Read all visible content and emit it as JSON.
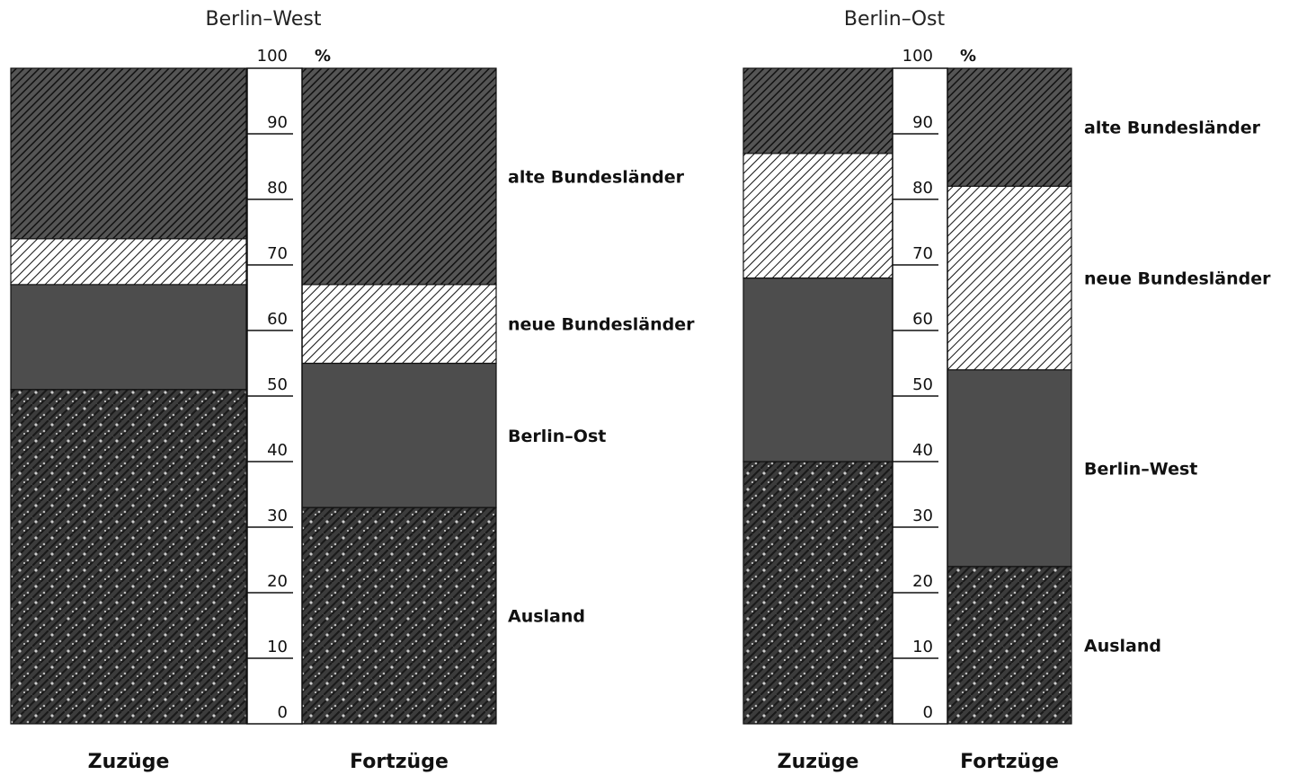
{
  "chart_data": [
    {
      "type": "bar",
      "stacked": true,
      "title": "Berlin–West",
      "unit": "%",
      "ylim": [
        0,
        100
      ],
      "yticks": [
        0,
        10,
        20,
        30,
        40,
        50,
        60,
        70,
        80,
        90,
        100
      ],
      "categories": [
        "Zuzüge",
        "Fortzüge"
      ],
      "series": [
        {
          "name": "Ausland",
          "values": [
            51,
            33
          ]
        },
        {
          "name": "Berlin–Ost",
          "values": [
            16,
            22
          ]
        },
        {
          "name": "neue Bundesländer",
          "values": [
            7,
            12
          ]
        },
        {
          "name": "alte Bundesländer",
          "values": [
            26,
            33
          ]
        }
      ],
      "colors": {
        "alte": "#3a3a3a",
        "neue": "#ffffff",
        "ost": "#4a4a4a",
        "ausland": "#2e2e2e"
      }
    },
    {
      "type": "bar",
      "stacked": true,
      "title": "Berlin–Ost",
      "unit": "%",
      "ylim": [
        0,
        100
      ],
      "yticks": [
        0,
        10,
        20,
        30,
        40,
        50,
        60,
        70,
        80,
        90,
        100
      ],
      "categories": [
        "Zuzüge",
        "Fortzüge"
      ],
      "series": [
        {
          "name": "Ausland",
          "values": [
            40,
            24
          ]
        },
        {
          "name": "Berlin–West",
          "values": [
            28,
            30
          ]
        },
        {
          "name": "neue Bundesländer",
          "values": [
            19,
            28
          ]
        },
        {
          "name": "alte Bundesländer",
          "values": [
            13,
            18
          ]
        }
      ],
      "colors": {
        "alte": "#3a3a3a",
        "neue": "#ffffff",
        "ost": "#4a4a4a",
        "ausland": "#2e2e2e"
      }
    }
  ]
}
